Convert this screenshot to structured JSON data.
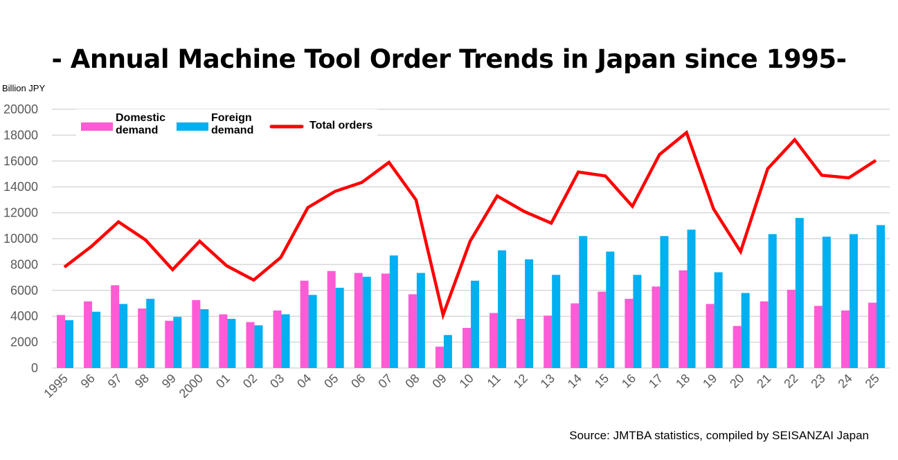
{
  "chart_data": {
    "type": "bar",
    "title": "- Annual Machine Tool Order Trends in Japan since 1995-",
    "ylabel": "Billion JPY",
    "source": "Source: JMTBA statistics, compiled by SEISANZAI Japan",
    "ylim": [
      0,
      20000
    ],
    "yticks": [
      0,
      2000,
      4000,
      6000,
      8000,
      10000,
      12000,
      14000,
      16000,
      18000,
      20000
    ],
    "grid": true,
    "legend_placement": "top-left",
    "categories": [
      "1995",
      "96",
      "97",
      "98",
      "99",
      "2000",
      "01",
      "02",
      "03",
      "04",
      "05",
      "06",
      "07",
      "08",
      "09",
      "10",
      "11",
      "12",
      "13",
      "14",
      "15",
      "16",
      "17",
      "18",
      "19",
      "20",
      "21",
      "22",
      "23",
      "24",
      "25"
    ],
    "series": [
      {
        "name": "Domestic demand",
        "legend_lines": [
          "Domestic",
          "demand"
        ],
        "type": "bar",
        "color": "#ff5bd6",
        "values": [
          4100,
          5150,
          6400,
          4600,
          3650,
          5250,
          4150,
          3550,
          4450,
          6750,
          7500,
          7350,
          7300,
          5700,
          1650,
          3100,
          4250,
          3800,
          4050,
          5000,
          5900,
          5350,
          6300,
          7550,
          4950,
          3250,
          5150,
          6050,
          4800,
          4450,
          5050
        ]
      },
      {
        "name": "Foreign demand",
        "legend_lines": [
          "Foreign",
          "demand"
        ],
        "type": "bar",
        "color": "#00b0f0",
        "values": [
          3700,
          4350,
          4950,
          5350,
          3950,
          4550,
          3800,
          3300,
          4150,
          5650,
          6200,
          7050,
          8700,
          7350,
          2550,
          6750,
          9100,
          8400,
          7200,
          10200,
          9000,
          7200,
          10200,
          10700,
          7400,
          5800,
          10350,
          11600,
          10150,
          10350,
          11050
        ]
      },
      {
        "name": "Total orders",
        "legend_lines": [
          "Total orders"
        ],
        "type": "line",
        "color": "#ff0000",
        "values": [
          7800,
          9400,
          11300,
          9900,
          7600,
          9800,
          7900,
          6800,
          8550,
          12400,
          13650,
          14350,
          15900,
          13000,
          4100,
          9800,
          13300,
          12100,
          11200,
          15150,
          14850,
          12500,
          16500,
          18200,
          12300,
          9000,
          15400,
          17650,
          14900,
          14700,
          16050
        ]
      }
    ]
  }
}
